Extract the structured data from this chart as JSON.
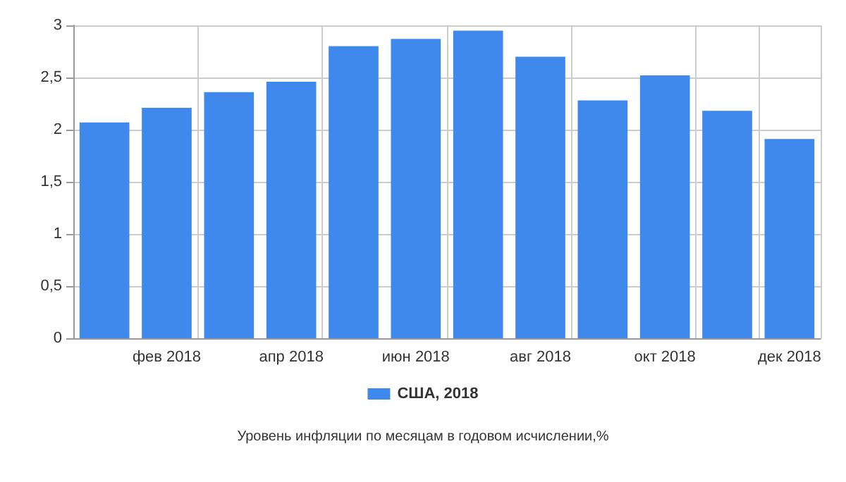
{
  "chart_data": {
    "type": "bar",
    "title": "Уровень инфляции по месяцам в годовом исчислении,%",
    "categories": [
      null,
      "фев 2018",
      null,
      "апр 2018",
      null,
      "июн 2018",
      null,
      "авг 2018",
      null,
      "окт 2018",
      null,
      "дек 2018"
    ],
    "series": [
      {
        "name": "США, 2018",
        "color": "#3f88ec",
        "values": [
          2.07,
          2.21,
          2.36,
          2.46,
          2.8,
          2.87,
          2.95,
          2.7,
          2.28,
          2.52,
          2.18,
          1.91
        ]
      }
    ],
    "ylim": [
      0,
      3
    ],
    "yticks": [
      0,
      {
        "value": 0.5,
        "label": "0,5"
      },
      1,
      {
        "value": 1.5,
        "label": "1,5"
      },
      2,
      {
        "value": 2.5,
        "label": "2,5"
      },
      3
    ],
    "grid": true,
    "legend": "bottom"
  }
}
